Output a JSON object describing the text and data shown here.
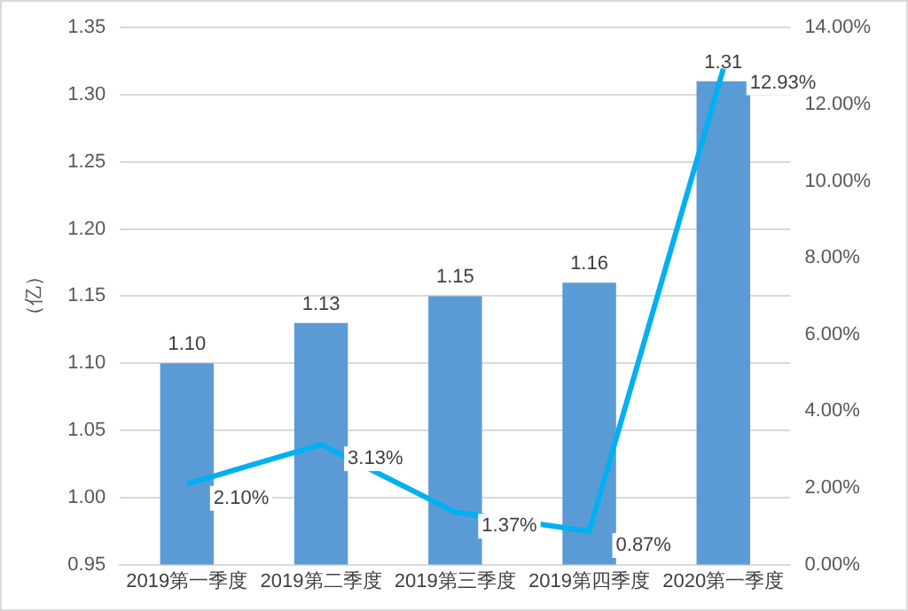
{
  "chart_data": {
    "type": "bar",
    "ylabel": "（亿）",
    "categories": [
      "2019第一季度",
      "2019第二季度",
      "2019第三季度",
      "2019第四季度",
      "2020第一季度"
    ],
    "series": [
      {
        "color": "#5b9bd5",
        "values": [
          1.1,
          1.13,
          1.15,
          1.16,
          1.31
        ],
        "value_labels": [
          "1.10",
          "1.13",
          "1.15",
          "1.16",
          "1.31"
        ]
      },
      {
        "type": "line",
        "axis": "y2",
        "color": "#00b0f0",
        "values": [
          2.1,
          3.13,
          1.37,
          0.87,
          12.93
        ],
        "value_labels": [
          "2.10%",
          "3.13%",
          "1.37%",
          "0.87%",
          "12.93%"
        ]
      }
    ],
    "ylim": [
      0.95,
      1.35
    ],
    "yticks": [
      {
        "value": 0.95,
        "label": "0.95"
      },
      {
        "value": 1.0,
        "label": "1.00"
      },
      {
        "value": 1.05,
        "label": "1.05"
      },
      {
        "value": 1.1,
        "label": "1.10"
      },
      {
        "value": 1.15,
        "label": "1.15"
      },
      {
        "value": 1.2,
        "label": "1.20"
      },
      {
        "value": 1.25,
        "label": "1.25"
      },
      {
        "value": 1.3,
        "label": "1.30"
      },
      {
        "value": 1.35,
        "label": "1.35"
      }
    ],
    "y2lim": [
      0,
      14
    ],
    "y2ticks": [
      {
        "value": 0,
        "label": "0.00%"
      },
      {
        "value": 2,
        "label": "2.00%"
      },
      {
        "value": 4,
        "label": "4.00%"
      },
      {
        "value": 6,
        "label": "6.00%"
      },
      {
        "value": 8,
        "label": "8.00%"
      },
      {
        "value": 10,
        "label": "10.00%"
      },
      {
        "value": 12,
        "label": "12.00%"
      },
      {
        "value": 14,
        "label": "14.00%"
      }
    ],
    "grid": "y",
    "marker": "none",
    "line_style": "solid"
  }
}
